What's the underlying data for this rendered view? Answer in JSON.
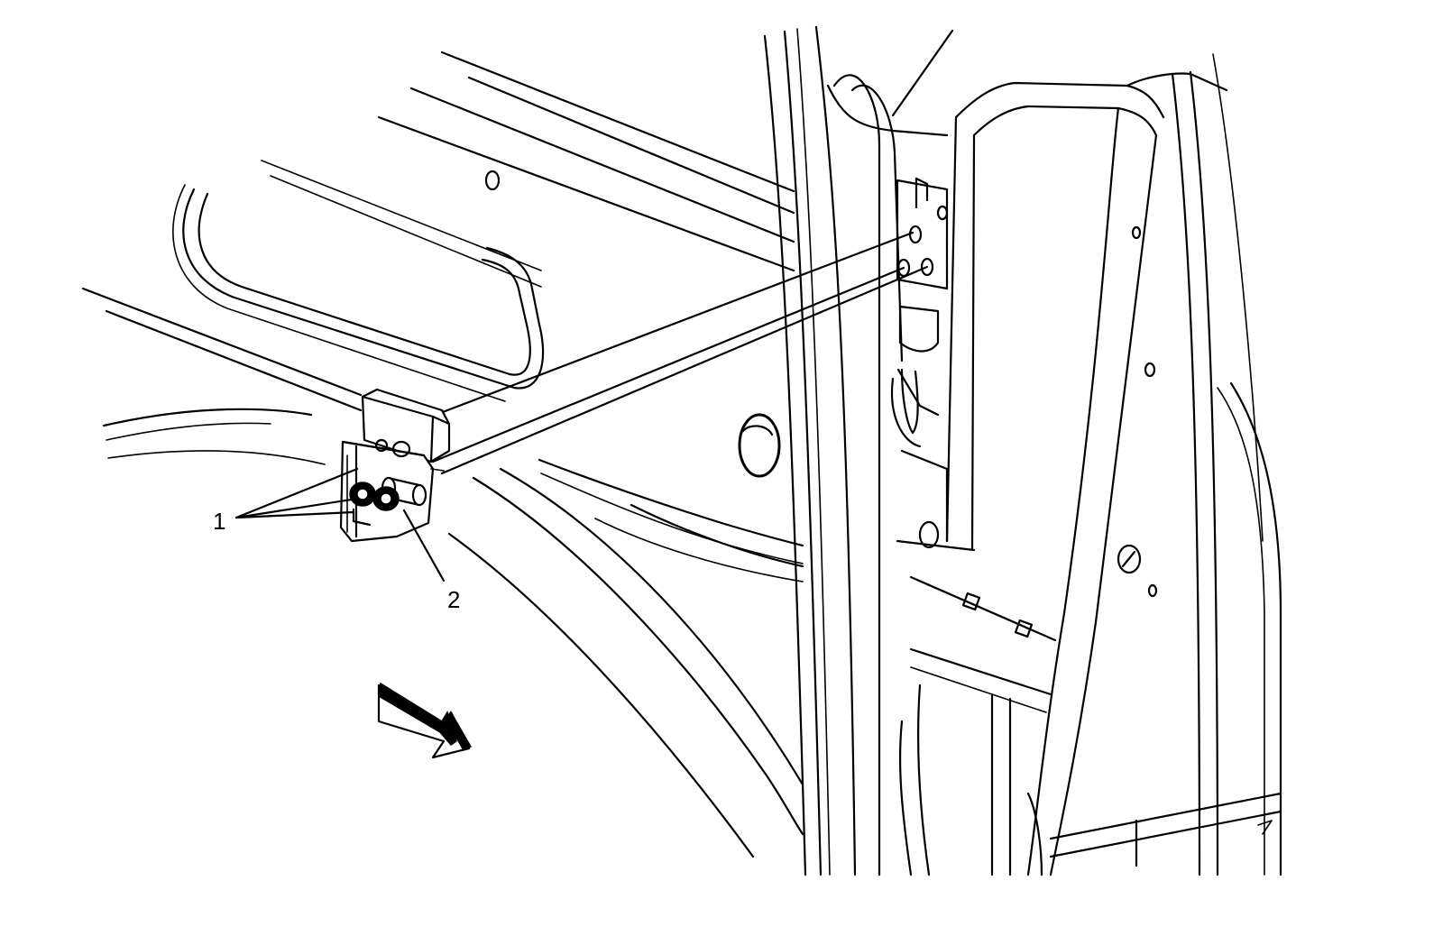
{
  "callouts": {
    "fastener_label": "1",
    "bracket_label": "2"
  },
  "colors": {
    "line": "#000000",
    "background": "#ffffff"
  },
  "icons": {
    "front_direction": "view-direction-arrow-icon"
  }
}
